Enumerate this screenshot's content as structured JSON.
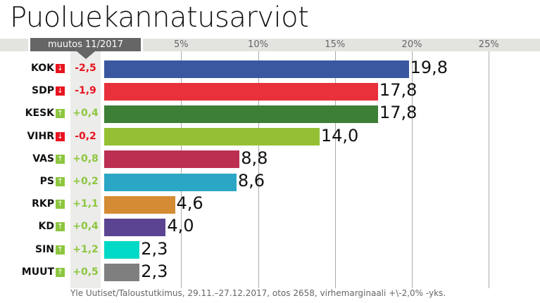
{
  "title": "Puoluekannatusarviot",
  "change_header": "muutos 11/2017",
  "source": "Yle Uutiset/Taloustutkimus, 29.11.–27.12.2017, otos 2658, virhemarginaali +\\-2,0% -yks.",
  "colors": {
    "up": "#8dc63f",
    "down": "#e8141e"
  },
  "chart_data": {
    "type": "bar",
    "orientation": "horizontal",
    "xlim": [
      0,
      25
    ],
    "ticks": [
      {
        "v": 5,
        "label": "5%"
      },
      {
        "v": 10,
        "label": "10%"
      },
      {
        "v": 15,
        "label": "15%"
      },
      {
        "v": 20,
        "label": "20%"
      },
      {
        "v": 25,
        "label": "25%"
      }
    ],
    "grid": true,
    "rows": [
      {
        "party": "KOK",
        "value": 19.8,
        "label": "19,8",
        "change": "-2,5",
        "dir": "down",
        "color": "#3a58a0"
      },
      {
        "party": "SDP",
        "value": 17.8,
        "label": "17,8",
        "change": "-1,9",
        "dir": "down",
        "color": "#e8313a"
      },
      {
        "party": "KESK",
        "value": 17.8,
        "label": "17,8",
        "change": "+0,4",
        "dir": "up",
        "color": "#3d7f37"
      },
      {
        "party": "VIHR",
        "value": 14.0,
        "label": "14,0",
        "change": "-0,2",
        "dir": "down",
        "color": "#95c034"
      },
      {
        "party": "VAS",
        "value": 8.8,
        "label": "8,8",
        "change": "+0,8",
        "dir": "up",
        "color": "#bc2f51"
      },
      {
        "party": "PS",
        "value": 8.6,
        "label": "8,6",
        "change": "+0,2",
        "dir": "up",
        "color": "#2ba6c4"
      },
      {
        "party": "RKP",
        "value": 4.6,
        "label": "4,6",
        "change": "+1,1",
        "dir": "up",
        "color": "#d48b33"
      },
      {
        "party": "KD",
        "value": 4.0,
        "label": "4,0",
        "change": "+0,4",
        "dir": "up",
        "color": "#5b4592"
      },
      {
        "party": "SIN",
        "value": 2.3,
        "label": "2,3",
        "change": "+1,2",
        "dir": "up",
        "color": "#00d9c5"
      },
      {
        "party": "MUUT",
        "value": 2.3,
        "label": "2,3",
        "change": "+0,5",
        "dir": "up",
        "color": "#7f7f7f"
      }
    ]
  }
}
